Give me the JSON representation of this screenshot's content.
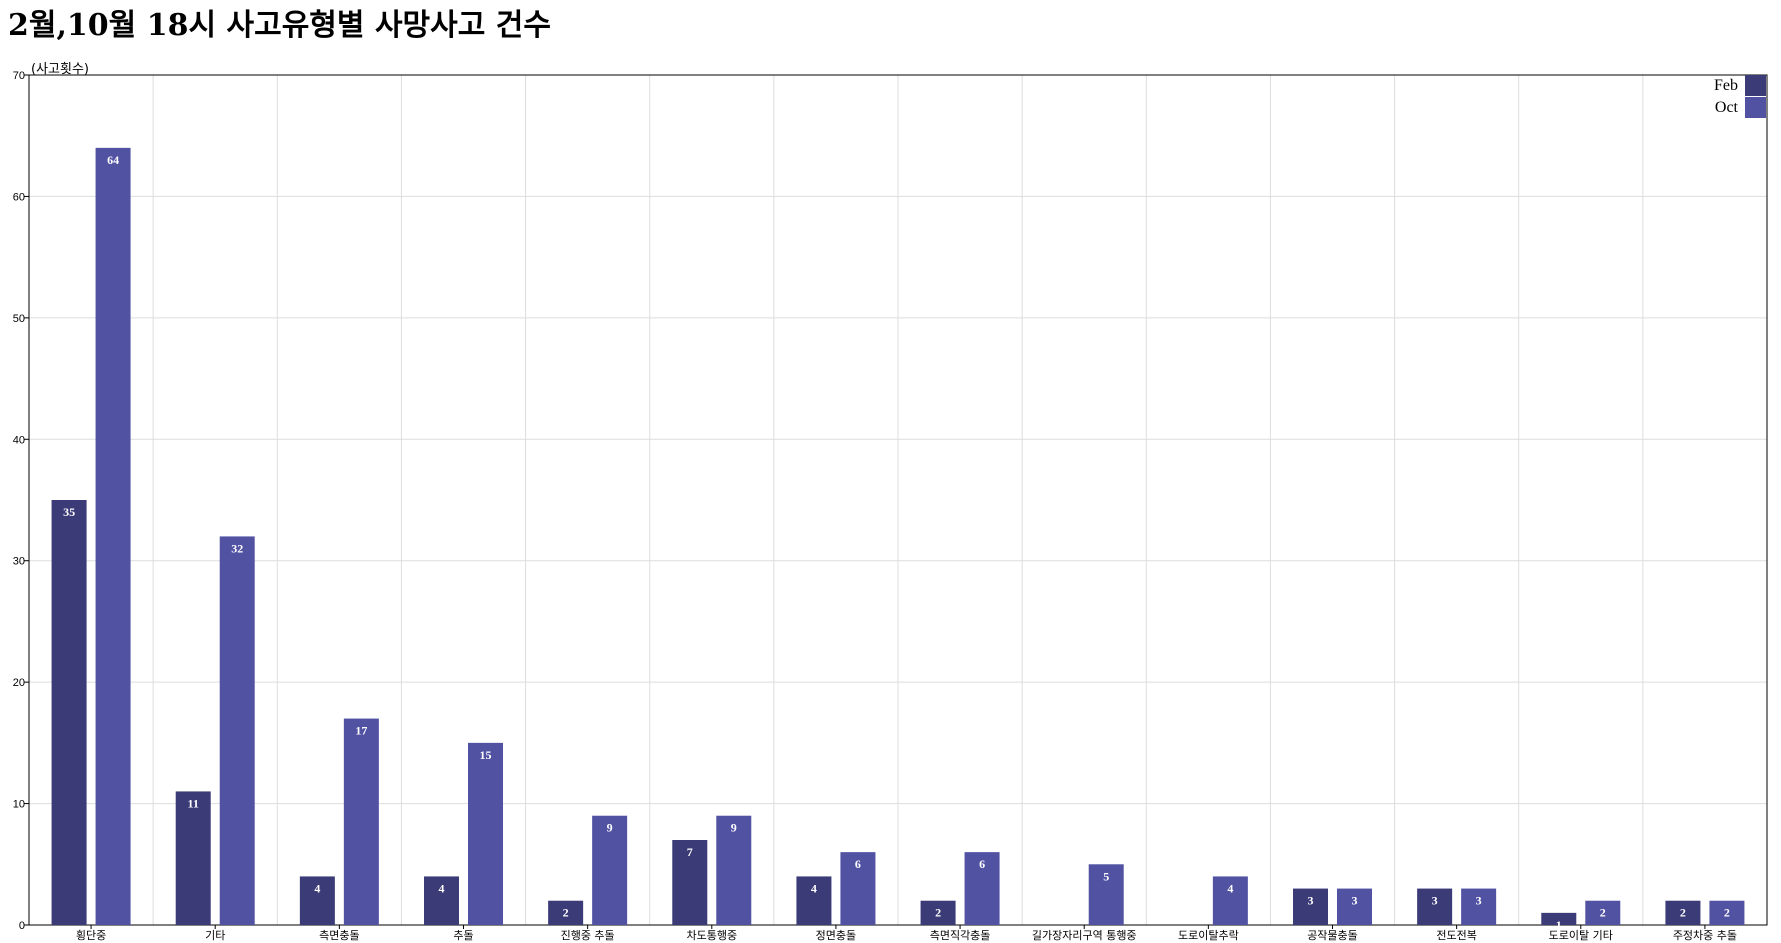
{
  "chart_data": {
    "type": "bar",
    "title": "2월,10월 18시 사고유형별 사망사고 건수",
    "xlabel": "",
    "ylabel": "(사고횟수)",
    "ylim": [
      0,
      70
    ],
    "yticks": [
      0,
      10,
      20,
      30,
      40,
      50,
      60,
      70
    ],
    "grid": true,
    "legend_position": "top-right",
    "categories": [
      "횡단중",
      "기타",
      "측면충돌",
      "추돌",
      "진행중 추돌",
      "차도통행중",
      "정면충돌",
      "측면직각충돌",
      "길가장자리구역 통행중",
      "도로이탈추락",
      "공작물충돌",
      "전도전복",
      "도로이탈 기타",
      "주정차중 추돌"
    ],
    "series": [
      {
        "name": "Feb",
        "color": "#3b3b77",
        "values": [
          35,
          11,
          4,
          4,
          2,
          7,
          4,
          2,
          null,
          null,
          3,
          3,
          1,
          2
        ]
      },
      {
        "name": "Oct",
        "color": "#5252a3",
        "values": [
          64,
          32,
          17,
          15,
          9,
          9,
          6,
          6,
          5,
          4,
          3,
          3,
          2,
          2
        ]
      }
    ]
  }
}
